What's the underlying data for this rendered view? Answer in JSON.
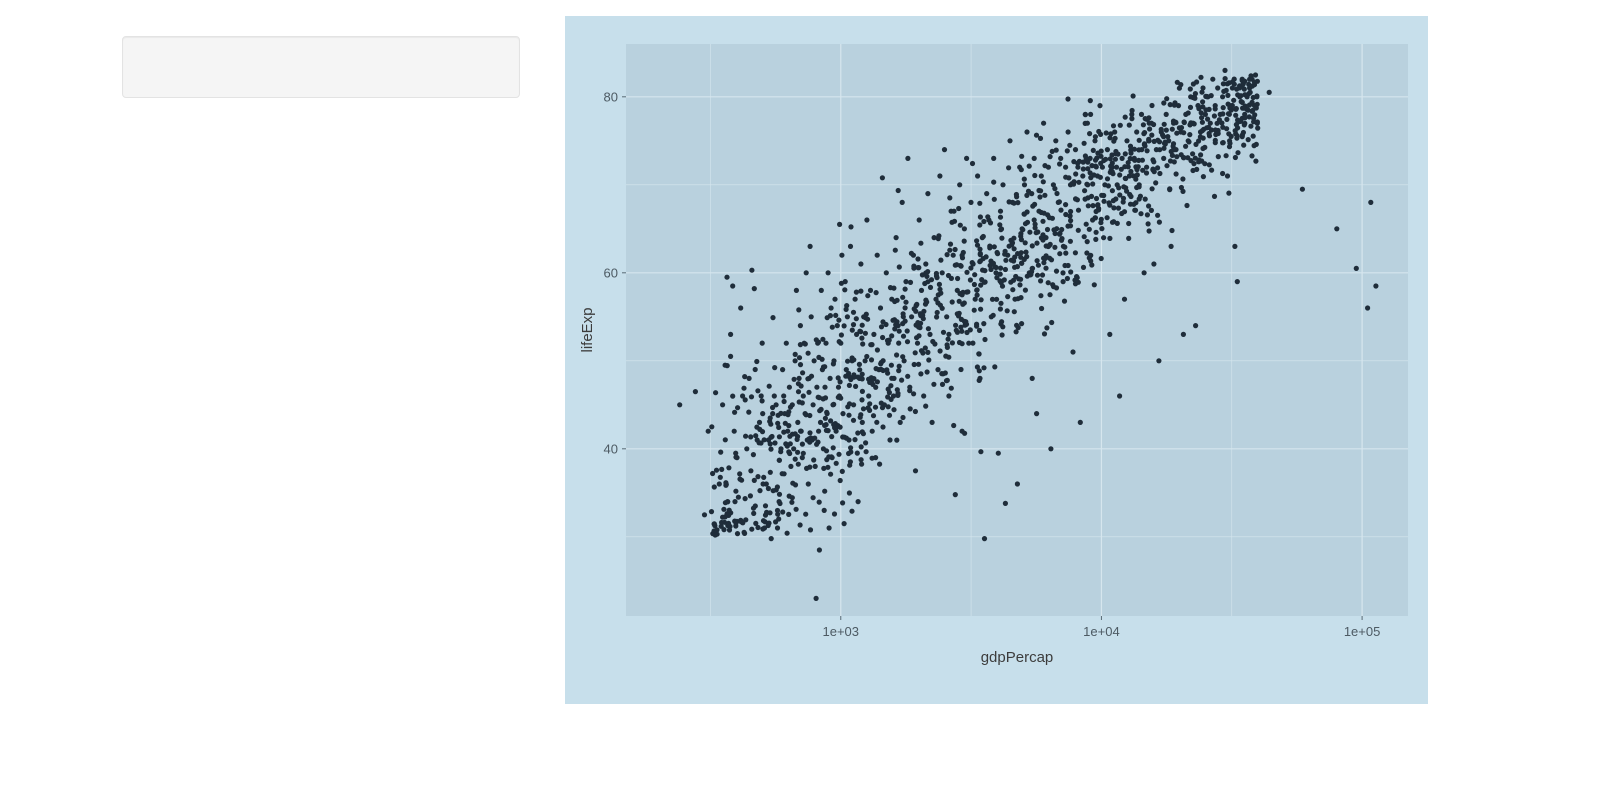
{
  "sidebar": {
    "panel_label": ""
  },
  "chart_data": {
    "type": "scatter",
    "xlabel": "gdpPercap",
    "ylabel": "lifeExp",
    "x_scale": "log10",
    "xlim": [
      150,
      150000
    ],
    "ylim": [
      21,
      86
    ],
    "x_ticks": [
      {
        "value": 1000,
        "label": "1e+03"
      },
      {
        "value": 10000,
        "label": "1e+04"
      },
      {
        "value": 100000,
        "label": "1e+05"
      }
    ],
    "y_ticks": [
      {
        "value": 40,
        "label": "40"
      },
      {
        "value": 60,
        "label": "60"
      },
      {
        "value": 80,
        "label": "80"
      }
    ],
    "x_minor_gridlines": [
      316,
      3162,
      31623
    ],
    "y_minor_gridlines": [
      30,
      50,
      70
    ],
    "grid": true,
    "legend": "none",
    "colors": {
      "outer_background": "#c7dfeb",
      "panel_background": "#b9d1de",
      "gridline": "#d6e6ee",
      "point": "#1f2d3a",
      "text": "#3c3c3c",
      "tick_text": "#4d5a63"
    },
    "points": [
      [
        241,
        45
      ],
      [
        277,
        46.5
      ],
      [
        300,
        32.5
      ],
      [
        310,
        42
      ],
      [
        320,
        42.5
      ],
      [
        342,
        36
      ],
      [
        352,
        45
      ],
      [
        360,
        49.5
      ],
      [
        366,
        59.5
      ],
      [
        378,
        53
      ],
      [
        385,
        58.5
      ],
      [
        390,
        42
      ],
      [
        393,
        34
      ],
      [
        400,
        39
      ],
      [
        405,
        34.5
      ],
      [
        413,
        56
      ],
      [
        420,
        46
      ],
      [
        428,
        48.2
      ],
      [
        436,
        40
      ],
      [
        445,
        48
      ],
      [
        452,
        37.5
      ],
      [
        456,
        60.3
      ],
      [
        466,
        58.2
      ],
      [
        470,
        33.5
      ],
      [
        478,
        41
      ],
      [
        488,
        43
      ],
      [
        495,
        46
      ],
      [
        502,
        44
      ],
      [
        510,
        31
      ],
      [
        518,
        36
      ],
      [
        528,
        41
      ],
      [
        536,
        43.5
      ],
      [
        541,
        29.8
      ],
      [
        548,
        44
      ],
      [
        556,
        46
      ],
      [
        565,
        45
      ],
      [
        572,
        31
      ],
      [
        580,
        34
      ],
      [
        590,
        40
      ],
      [
        598,
        49
      ],
      [
        604,
        46
      ],
      [
        610,
        44
      ],
      [
        618,
        52
      ],
      [
        626,
        42
      ],
      [
        635,
        47
      ],
      [
        644,
        38
      ],
      [
        652,
        45
      ],
      [
        660,
        40
      ],
      [
        668,
        50
      ],
      [
        676,
        58
      ],
      [
        684,
        43
      ],
      [
        692,
        48
      ],
      [
        700,
        54
      ],
      [
        705,
        42
      ],
      [
        712,
        39
      ],
      [
        718,
        46
      ],
      [
        724,
        52
      ],
      [
        730,
        44
      ],
      [
        737,
        60
      ],
      [
        744,
        41
      ],
      [
        751,
        36
      ],
      [
        756,
        48
      ],
      [
        763,
        63
      ],
      [
        770,
        55
      ],
      [
        776,
        41
      ],
      [
        783,
        45
      ],
      [
        790,
        50
      ],
      [
        798,
        38
      ],
      [
        804,
        23
      ],
      [
        810,
        47
      ],
      [
        816,
        52
      ],
      [
        822,
        42
      ],
      [
        828,
        28.5
      ],
      [
        836,
        43
      ],
      [
        842,
        58
      ],
      [
        850,
        49
      ],
      [
        858,
        40
      ],
      [
        864,
        33
      ],
      [
        870,
        47
      ],
      [
        878,
        52
      ],
      [
        886,
        44
      ],
      [
        894,
        60
      ],
      [
        902,
        31
      ],
      [
        910,
        48
      ],
      [
        918,
        56
      ],
      [
        926,
        39
      ],
      [
        934,
        45
      ],
      [
        942,
        50
      ],
      [
        950,
        57
      ],
      [
        960,
        42
      ],
      [
        970,
        54
      ],
      [
        980,
        47
      ],
      [
        990,
        65.5
      ],
      [
        1000,
        52
      ],
      [
        1010,
        62
      ],
      [
        1020,
        44
      ],
      [
        1030,
        31.5
      ],
      [
        1040,
        59
      ],
      [
        1050,
        49
      ],
      [
        1060,
        55
      ],
      [
        1075,
        41
      ],
      [
        1090,
        63
      ],
      [
        1105,
        50
      ],
      [
        1120,
        45
      ],
      [
        1135,
        57
      ],
      [
        1150,
        53
      ],
      [
        1165,
        34
      ],
      [
        1180,
        48
      ],
      [
        1195,
        61
      ],
      [
        1210,
        43
      ],
      [
        1225,
        55
      ],
      [
        1240,
        50
      ],
      [
        1260,
        66
      ],
      [
        1280,
        46
      ],
      [
        1300,
        58
      ],
      [
        1320,
        42
      ],
      [
        1340,
        53
      ],
      [
        1360,
        39
      ],
      [
        1380,
        62
      ],
      [
        1400,
        49
      ],
      [
        1420,
        56
      ],
      [
        1445,
        70.8
      ],
      [
        1470,
        45
      ],
      [
        1495,
        60
      ],
      [
        1520,
        52
      ],
      [
        1545,
        41
      ],
      [
        1570,
        57
      ],
      [
        1600,
        48
      ],
      [
        1630,
        64
      ],
      [
        1660,
        54
      ],
      [
        1690,
        43
      ],
      [
        1720,
        68
      ],
      [
        1750,
        50
      ],
      [
        1780,
        59
      ],
      [
        1810,
        73
      ],
      [
        1840,
        47
      ],
      [
        1870,
        55
      ],
      [
        1900,
        62
      ],
      [
        1935,
        37.5
      ],
      [
        1970,
        52
      ],
      [
        2000,
        66
      ],
      [
        2040,
        58
      ],
      [
        2080,
        46
      ],
      [
        2120,
        61
      ],
      [
        2160,
        69
      ],
      [
        2200,
        53
      ],
      [
        2240,
        43
      ],
      [
        2280,
        64
      ],
      [
        2320,
        57
      ],
      [
        2360,
        49
      ],
      [
        2400,
        71
      ],
      [
        2450,
        60
      ],
      [
        2500,
        74
      ],
      [
        2550,
        55
      ],
      [
        2600,
        46
      ],
      [
        2650,
        67
      ],
      [
        2700,
        62
      ],
      [
        2750,
        34.8
      ],
      [
        2800,
        58
      ],
      [
        2860,
        70
      ],
      [
        2920,
        42
      ],
      [
        2980,
        65
      ],
      [
        3040,
        73
      ],
      [
        3100,
        52
      ],
      [
        3160,
        68
      ],
      [
        3220,
        61
      ],
      [
        3280,
        57
      ],
      [
        3350,
        71
      ],
      [
        3420,
        48
      ],
      [
        3490,
        64
      ],
      [
        3560,
        29.8
      ],
      [
        3630,
        69
      ],
      [
        3700,
        66
      ],
      [
        3780,
        55
      ],
      [
        3860,
        73
      ],
      [
        3940,
        60
      ],
      [
        4020,
        39.5
      ],
      [
        4100,
        67
      ],
      [
        4190,
        70
      ],
      [
        4280,
        33.8
      ],
      [
        4370,
        62
      ],
      [
        4460,
        75
      ],
      [
        4560,
        68
      ],
      [
        4660,
        57
      ],
      [
        4760,
        36
      ],
      [
        4860,
        72
      ],
      [
        4960,
        65
      ],
      [
        5070,
        70
      ],
      [
        5180,
        76
      ],
      [
        5290,
        60
      ],
      [
        5400,
        69
      ],
      [
        5520,
        73
      ],
      [
        5640,
        44
      ],
      [
        5760,
        67
      ],
      [
        5880,
        71
      ],
      [
        6000,
        77
      ],
      [
        6130,
        64
      ],
      [
        6260,
        72
      ],
      [
        6400,
        40
      ],
      [
        6540,
        70
      ],
      [
        6680,
        75
      ],
      [
        6830,
        68
      ],
      [
        6980,
        73
      ],
      [
        7130,
        59
      ],
      [
        7290,
        72
      ],
      [
        7450,
        76
      ],
      [
        7610,
        70
      ],
      [
        7780,
        51
      ],
      [
        7950,
        74
      ],
      [
        8120,
        72
      ],
      [
        8300,
        43
      ],
      [
        8480,
        71
      ],
      [
        8670,
        78
      ],
      [
        8860,
        70
      ],
      [
        9050,
        73
      ],
      [
        9250,
        66
      ],
      [
        9450,
        75
      ],
      [
        9660,
        71
      ],
      [
        9870,
        79
      ],
      [
        10090,
        72
      ],
      [
        10310,
        70
      ],
      [
        10540,
        74
      ],
      [
        10770,
        53
      ],
      [
        11000,
        72
      ],
      [
        11240,
        76
      ],
      [
        11490,
        70
      ],
      [
        11740,
        46
      ],
      [
        12000,
        73
      ],
      [
        12260,
        57
      ],
      [
        12530,
        75
      ],
      [
        12800,
        71
      ],
      [
        13080,
        78
      ],
      [
        13370,
        73
      ],
      [
        13660,
        76
      ],
      [
        13960,
        70
      ],
      [
        14270,
        74
      ],
      [
        14580,
        60
      ],
      [
        14900,
        72
      ],
      [
        15230,
        75
      ],
      [
        15560,
        77
      ],
      [
        15900,
        61
      ],
      [
        16250,
        74
      ],
      [
        16610,
        50
      ],
      [
        16970,
        76
      ],
      [
        17340,
        73
      ],
      [
        17720,
        78
      ],
      [
        18110,
        75
      ],
      [
        18510,
        63
      ],
      [
        18910,
        77
      ],
      [
        19330,
        74
      ],
      [
        19750,
        79
      ],
      [
        20180,
        76
      ],
      [
        20620,
        53
      ],
      [
        21070,
        78
      ],
      [
        21530,
        75
      ],
      [
        22000,
        80
      ],
      [
        22490,
        77
      ],
      [
        22980,
        54
      ],
      [
        23480,
        79
      ],
      [
        24000,
        76
      ],
      [
        24520,
        81
      ],
      [
        25060,
        78
      ],
      [
        25610,
        80
      ],
      [
        26170,
        77
      ],
      [
        26740,
        82
      ],
      [
        27330,
        79
      ],
      [
        27930,
        81
      ],
      [
        28540,
        78
      ],
      [
        29160,
        80
      ],
      [
        29800,
        83
      ],
      [
        30450,
        71
      ],
      [
        31120,
        79
      ],
      [
        31800,
        81
      ],
      [
        32500,
        63
      ],
      [
        33210,
        59
      ],
      [
        33940,
        80
      ],
      [
        34680,
        82
      ],
      [
        35440,
        78
      ],
      [
        36220,
        80
      ],
      [
        37010,
        81
      ],
      [
        37820,
        82
      ],
      [
        38650,
        79
      ],
      [
        39500,
        80
      ],
      [
        44000,
        80.5
      ],
      [
        59000,
        69.5
      ],
      [
        80000,
        65
      ],
      [
        95000,
        60.5
      ],
      [
        105000,
        56
      ],
      [
        108000,
        68
      ],
      [
        113000,
        58.5
      ]
    ]
  }
}
